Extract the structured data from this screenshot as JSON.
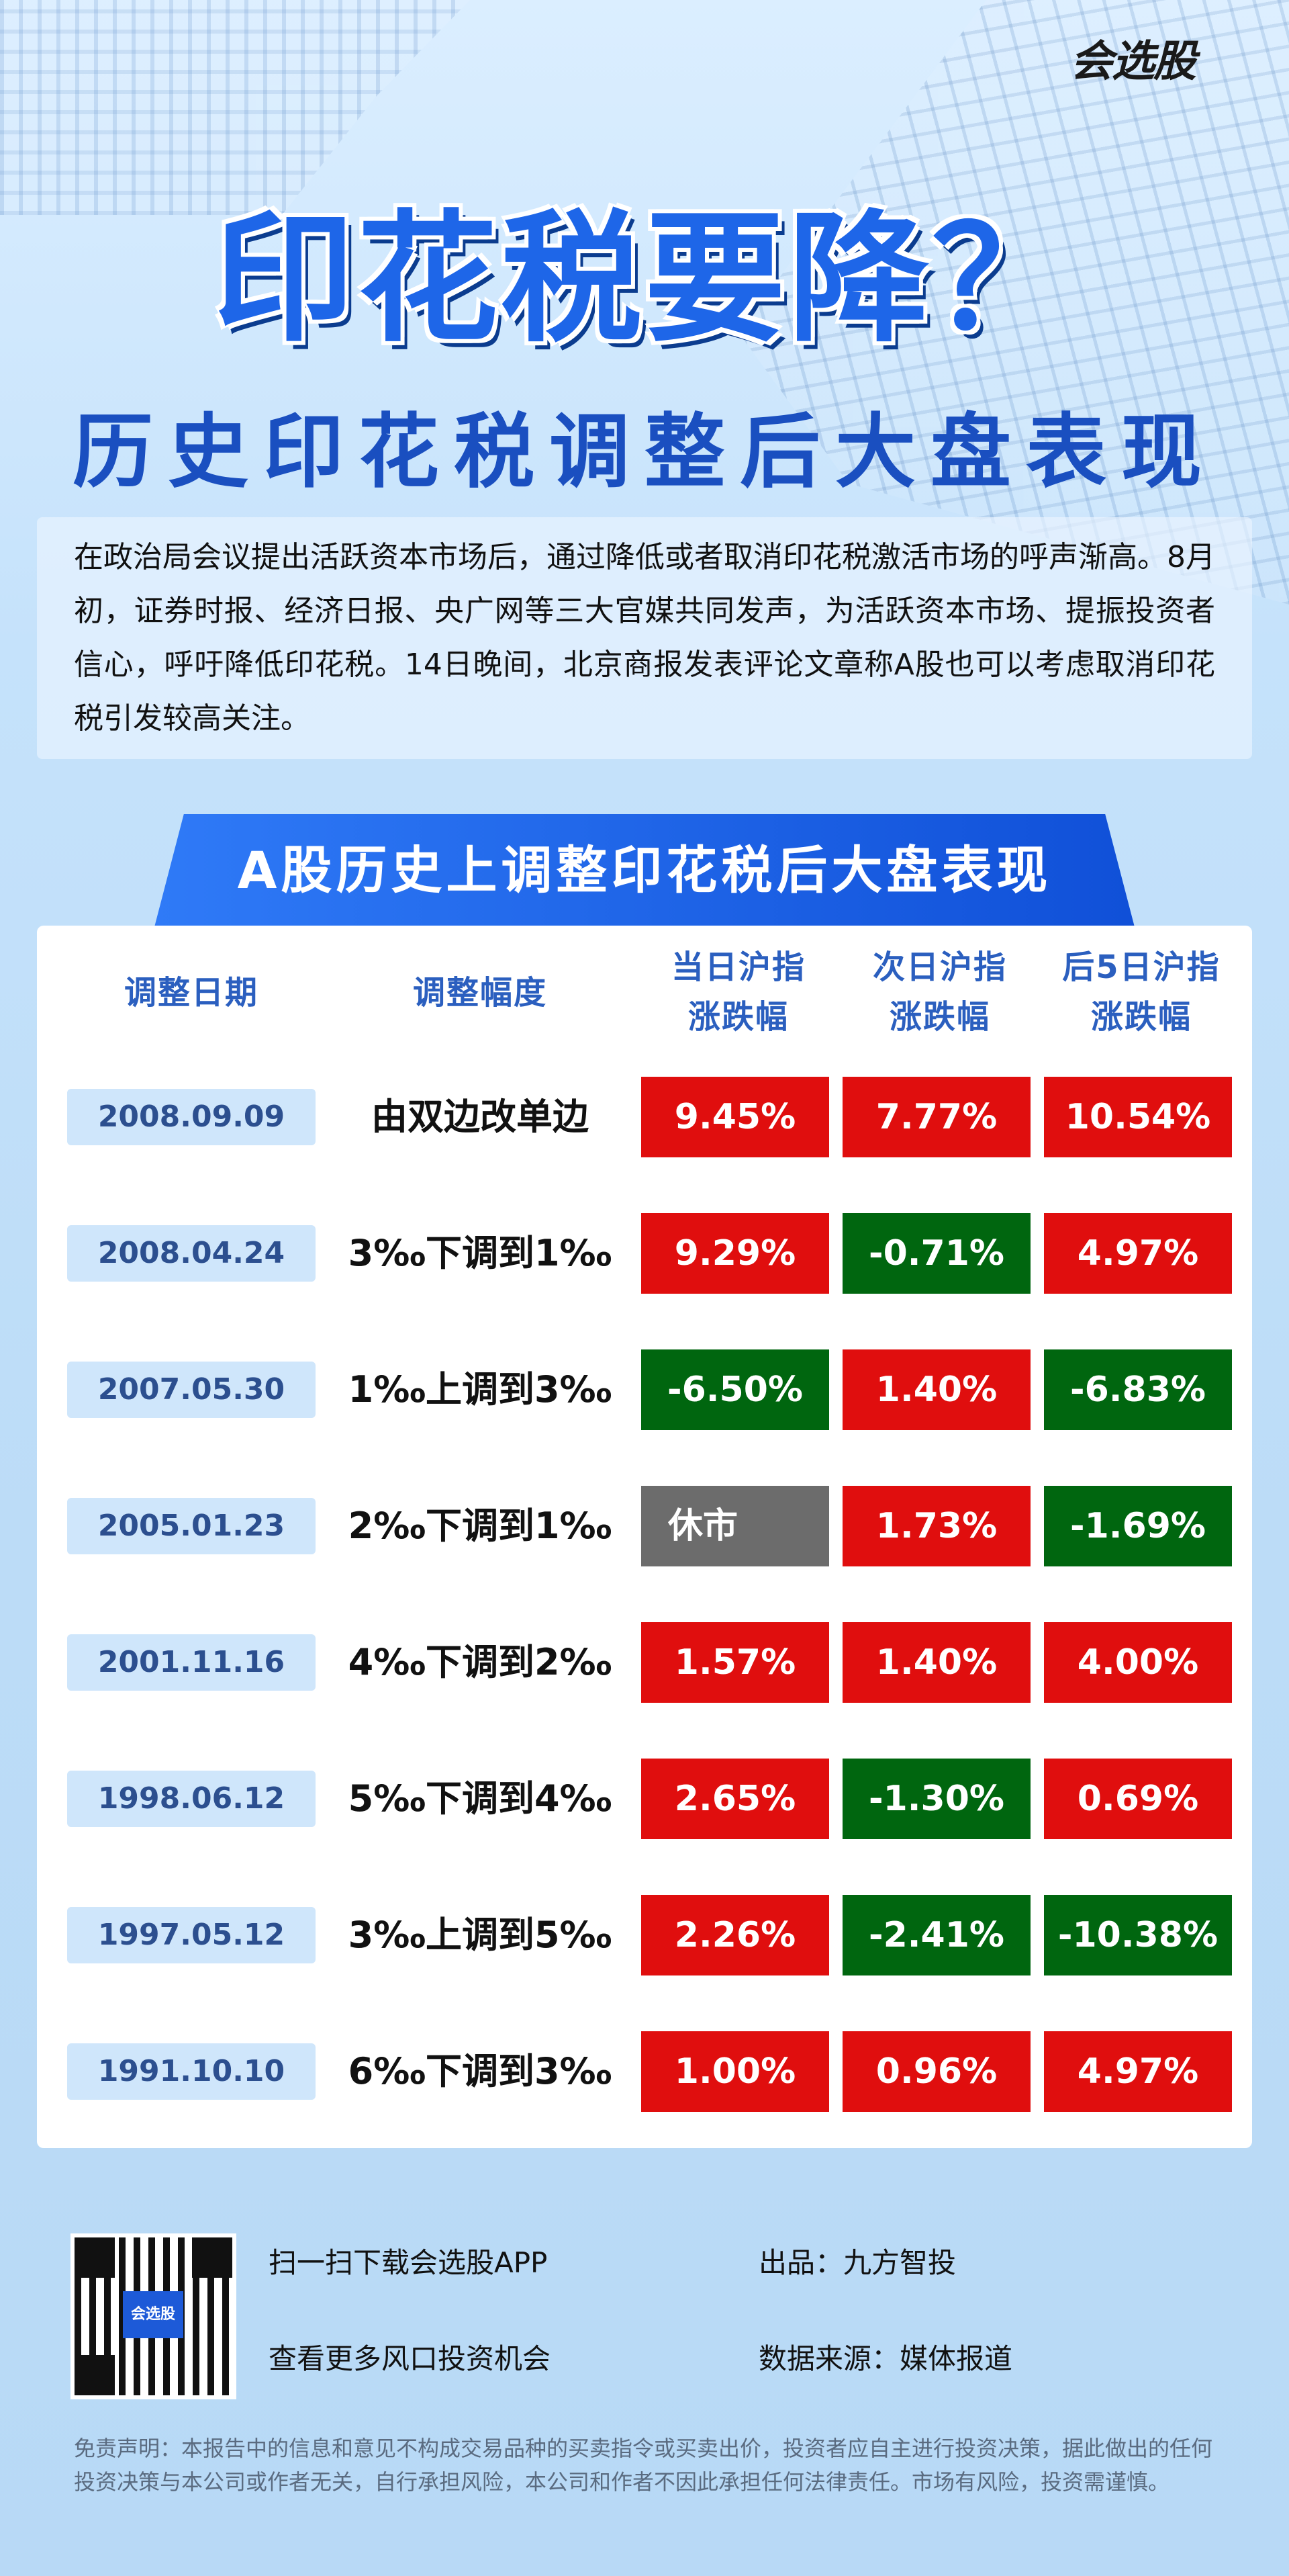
{
  "logo": "会选股",
  "title": "印花税要降？",
  "subtitle": "历史印花税调整后大盘表现",
  "intro": "在政治局会议提出活跃资本市场后，通过降低或者取消印花税激活市场的呼声渐高。8月初，证券时报、经济日报、央广网等三大官媒共同发声，为活跃资本市场、提振投资者信心，呼吁降低印花税。14日晚间，北京商报发表评论文章称A股也可以考虑取消印花税引发较高关注。",
  "section_title": "A股历史上调整印花税后大盘表现",
  "headers": {
    "date": "调整日期",
    "change": "调整幅度",
    "day0_l1": "当日沪指",
    "day0_l2": "涨跌幅",
    "day1_l1": "次日沪指",
    "day1_l2": "涨跌幅",
    "day5_l1": "后5日沪指",
    "day5_l2": "涨跌幅"
  },
  "rows": [
    {
      "date": "2008.09.09",
      "change": "由双边改单边",
      "d0": "9.45%",
      "d1": "7.77%",
      "d5": "10.54%"
    },
    {
      "date": "2008.04.24",
      "change": "3‰下调到1‰",
      "d0": "9.29%",
      "d1": "-0.71%",
      "d5": "4.97%"
    },
    {
      "date": "2007.05.30",
      "change": "1‰上调到3‰",
      "d0": "-6.50%",
      "d1": "1.40%",
      "d5": "-6.83%"
    },
    {
      "date": "2005.01.23",
      "change": "2‰下调到1‰",
      "d0": "休市",
      "d1": "1.73%",
      "d5": "-1.69%"
    },
    {
      "date": "2001.11.16",
      "change": "4‰下调到2‰",
      "d0": "1.57%",
      "d1": "1.40%",
      "d5": "4.00%"
    },
    {
      "date": "1998.06.12",
      "change": "5‰下调到4‰",
      "d0": "2.65%",
      "d1": "-1.30%",
      "d5": "0.69%"
    },
    {
      "date": "1997.05.12",
      "change": "3‰上调到5‰",
      "d0": "2.26%",
      "d1": "-2.41%",
      "d5": "-10.38%"
    },
    {
      "date": "1991.10.10",
      "change": "6‰下调到3‰",
      "d0": "1.00%",
      "d1": "0.96%",
      "d5": "4.97%"
    }
  ],
  "colors": {
    "up": "#e00e0e",
    "down": "#00660f",
    "closed": "#6c6c6c"
  },
  "qr_logo": "会选股",
  "footer": {
    "scan": "扫一扫下载会选股APP",
    "more": "查看更多风口投资机会",
    "producer": "出品：九方智投",
    "source": "数据来源：媒体报道"
  },
  "disclaimer": "免责声明：本报告中的信息和意见不构成交易品种的买卖指令或买卖出价，投资者应自主进行投资决策，据此做出的任何投资决策与本公司或作者无关，自行承担风险，本公司和作者不因此承担任何法律责任。市场有风险，投资需谨慎。"
}
